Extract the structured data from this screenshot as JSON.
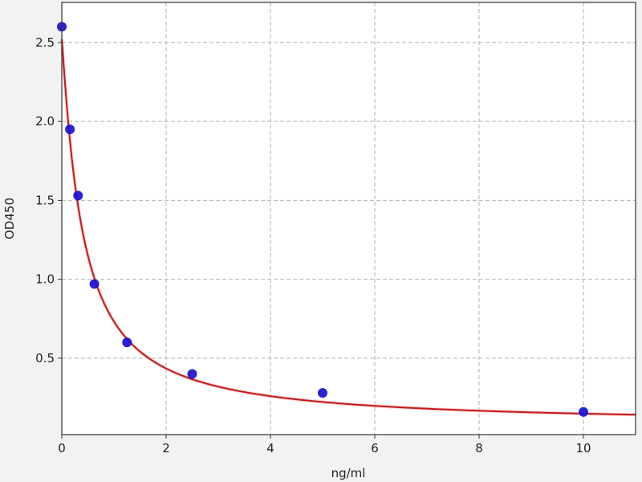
{
  "chart_data": {
    "type": "scatter",
    "title": "",
    "xlabel": "ng/ml",
    "ylabel": "OD450",
    "xlim": [
      0,
      11
    ],
    "ylim": [
      0.016,
      2.754
    ],
    "xticks": [
      0,
      2,
      4,
      6,
      8,
      10
    ],
    "xtick_labels": [
      "0",
      "2",
      "4",
      "6",
      "8",
      "10"
    ],
    "yticks": [
      0.5,
      1.0,
      1.5,
      2.0,
      2.5
    ],
    "ytick_labels": [
      "0.5",
      "1.0",
      "1.5",
      "2.0",
      "2.5"
    ],
    "grid": true,
    "points": {
      "x": [
        0,
        0.156,
        0.312,
        0.625,
        1.25,
        2.5,
        5,
        10
      ],
      "y": [
        2.6,
        1.95,
        1.53,
        0.97,
        0.6,
        0.4,
        0.28,
        0.16
      ]
    },
    "fit_curve": "four-parameter logistic",
    "colors": {
      "points": "#1a0fd0",
      "curve": "#c41a1a",
      "grid": "#b0b0b0",
      "background": "#f2f2f2",
      "plot_background": "#ffffff"
    }
  }
}
